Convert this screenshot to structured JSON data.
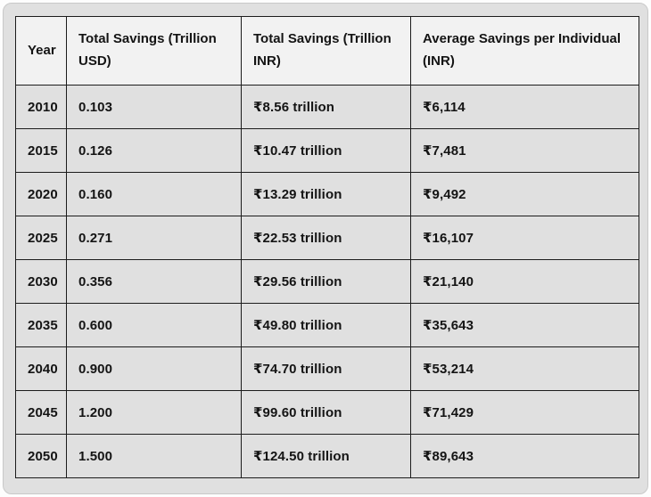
{
  "table": {
    "columns": [
      "Year",
      "Total Savings (Trillion USD)",
      "Total Savings (Trillion INR)",
      "Average Savings per Individual (INR)"
    ],
    "rows": [
      [
        "2010",
        "0.103",
        "₹8.56 trillion",
        "₹6,114"
      ],
      [
        "2015",
        "0.126",
        "₹10.47 trillion",
        "₹7,481"
      ],
      [
        "2020",
        "0.160",
        "₹13.29 trillion",
        "₹9,492"
      ],
      [
        "2025",
        "0.271",
        "₹22.53 trillion",
        "₹16,107"
      ],
      [
        "2030",
        "0.356",
        "₹29.56 trillion",
        "₹21,140"
      ],
      [
        "2035",
        "0.600",
        "₹49.80 trillion",
        "₹35,643"
      ],
      [
        "2040",
        "0.900",
        "₹74.70 trillion",
        "₹53,214"
      ],
      [
        "2045",
        "1.200",
        "₹99.60 trillion",
        "₹71,429"
      ],
      [
        "2050",
        "1.500",
        "₹124.50 trillion",
        "₹89,643"
      ]
    ],
    "colors": {
      "page_bg": "#fdfdfd",
      "card_bg": "#e0e0e0",
      "card_border": "#c9c9c9",
      "header_bg": "#f2f2f2",
      "cell_border": "#1c1c1c",
      "text": "#141414"
    }
  }
}
